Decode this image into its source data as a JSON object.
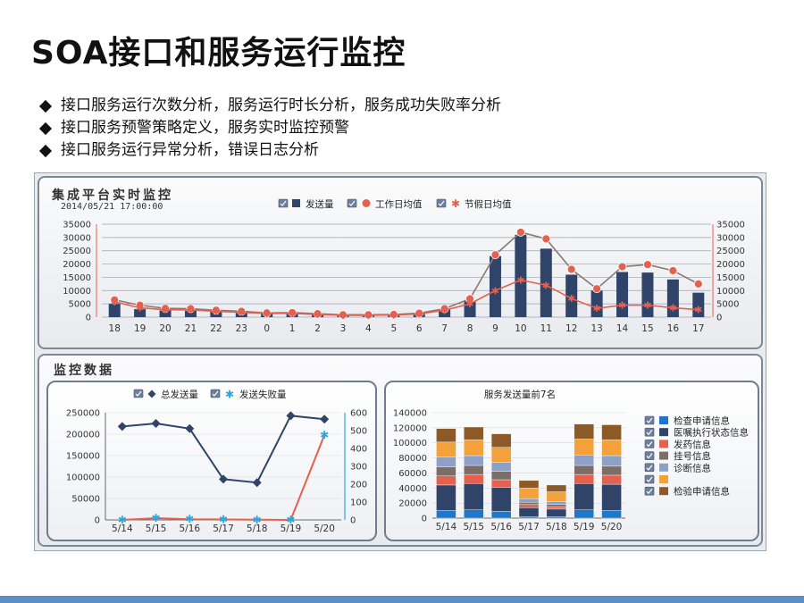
{
  "page": {
    "title": "SOA接口和服务运行监控",
    "bullets": [
      "接口服务运行次数分析，服务运行时长分析，服务成功失败率分析",
      "接口服务预警策略定义，服务实时监控预警",
      "接口服务运行异常分析，错误日志分析"
    ]
  },
  "realtime_panel": {
    "title": "集成平台实时监控",
    "timestamp": "2014/05/21 17:00:00"
  },
  "monitor_panel": {
    "title": "监控数据"
  },
  "chart_data": [
    {
      "type": "bar",
      "legend": [
        "发送量",
        "工作日均值",
        "节假日均值"
      ],
      "legend_placement": "top",
      "colors": {
        "bars": "#2f4468",
        "workday": "#e4604f",
        "holiday": "#e4604f"
      },
      "categories": [
        "18",
        "19",
        "20",
        "21",
        "22",
        "23",
        "0",
        "1",
        "2",
        "3",
        "4",
        "5",
        "6",
        "7",
        "8",
        "9",
        "10",
        "11",
        "12",
        "13",
        "14",
        "15",
        "16",
        "17"
      ],
      "series": [
        {
          "name": "发送量",
          "type": "bar",
          "values": [
            5000,
            3000,
            2500,
            2400,
            2000,
            1600,
            1200,
            1200,
            900,
            600,
            600,
            700,
            1200,
            3000,
            6000,
            23000,
            31000,
            25800,
            16000,
            10000,
            17000,
            16800,
            14200,
            9200
          ]
        },
        {
          "name": "工作日均值",
          "type": "line",
          "values": [
            6500,
            4500,
            3300,
            3200,
            2600,
            2200,
            1600,
            1700,
            1300,
            900,
            900,
            1000,
            1500,
            3200,
            6900,
            23500,
            32000,
            29500,
            18000,
            10700,
            19000,
            19800,
            17500,
            12500
          ]
        },
        {
          "name": "节假日均值",
          "type": "line",
          "values": [
            5800,
            3500,
            2800,
            2700,
            2200,
            1800,
            1400,
            1400,
            1000,
            700,
            700,
            800,
            1200,
            2600,
            5000,
            10000,
            14000,
            12000,
            7000,
            3300,
            4500,
            4500,
            3500,
            2800
          ]
        }
      ],
      "yticks": [
        "0",
        "5000",
        "10000",
        "15000",
        "20000",
        "25000",
        "30000",
        "35000"
      ],
      "ylim": [
        0,
        35000
      ],
      "grid": true
    },
    {
      "type": "line",
      "legend": [
        "总发送量",
        "发送失败量"
      ],
      "legend_placement": "top",
      "colors": {
        "total": "#2f4468",
        "failed": "#e4604f",
        "failed_marker": "#29a9df"
      },
      "categories": [
        "5/14",
        "5/15",
        "5/16",
        "5/17",
        "5/18",
        "5/19",
        "5/20"
      ],
      "series": [
        {
          "name": "总发送量",
          "axis": "left",
          "values": [
            218000,
            225000,
            213000,
            95000,
            87000,
            243000,
            235000
          ]
        },
        {
          "name": "发送失败量",
          "axis": "right",
          "values": [
            0,
            10,
            4,
            3,
            1,
            0,
            475
          ]
        }
      ],
      "yticks_left": [
        "0",
        "50000",
        "100000",
        "150000",
        "200000",
        "250000"
      ],
      "ylim_left": [
        0,
        250000
      ],
      "yticks_right": [
        "0",
        "100",
        "200",
        "300",
        "400",
        "500",
        "600"
      ],
      "ylim_right": [
        0,
        600
      ]
    },
    {
      "type": "bar",
      "stacked": true,
      "title": "服务发送量前7名",
      "legend_placement": "right",
      "categories": [
        "5/14",
        "5/15",
        "5/16",
        "5/17",
        "5/18",
        "5/19",
        "5/20"
      ],
      "series": [
        {
          "name": "检查申请信息",
          "color": "#1f77c9",
          "values": [
            10000,
            11000,
            9000,
            2000,
            2000,
            11000,
            10000
          ]
        },
        {
          "name": "医嘱执行状态信息",
          "color": "#2f4468",
          "values": [
            34000,
            35000,
            32000,
            12000,
            10000,
            35000,
            35000
          ]
        },
        {
          "name": "发药信息",
          "color": "#e4604f",
          "values": [
            12000,
            12000,
            10000,
            4000,
            3000,
            12000,
            12000
          ]
        },
        {
          "name": "挂号信息",
          "color": "#7b6e66",
          "values": [
            12000,
            12000,
            11000,
            3000,
            3000,
            12000,
            12000
          ]
        },
        {
          "name": "诊断信息",
          "color": "#8fa0c6",
          "values": [
            13000,
            13000,
            12000,
            5000,
            4000,
            14000,
            14000
          ]
        },
        {
          "name": "",
          "color": "#f4a03b",
          "values": [
            20000,
            21000,
            20000,
            14000,
            13000,
            21000,
            21000
          ]
        },
        {
          "name": "检验申请信息",
          "color": "#8b5a26",
          "values": [
            18000,
            17000,
            18000,
            10000,
            9000,
            20000,
            20000
          ]
        }
      ],
      "yticks": [
        "0",
        "20000",
        "40000",
        "60000",
        "80000",
        "100000",
        "120000",
        "140000"
      ],
      "ylim": [
        0,
        140000
      ]
    }
  ]
}
